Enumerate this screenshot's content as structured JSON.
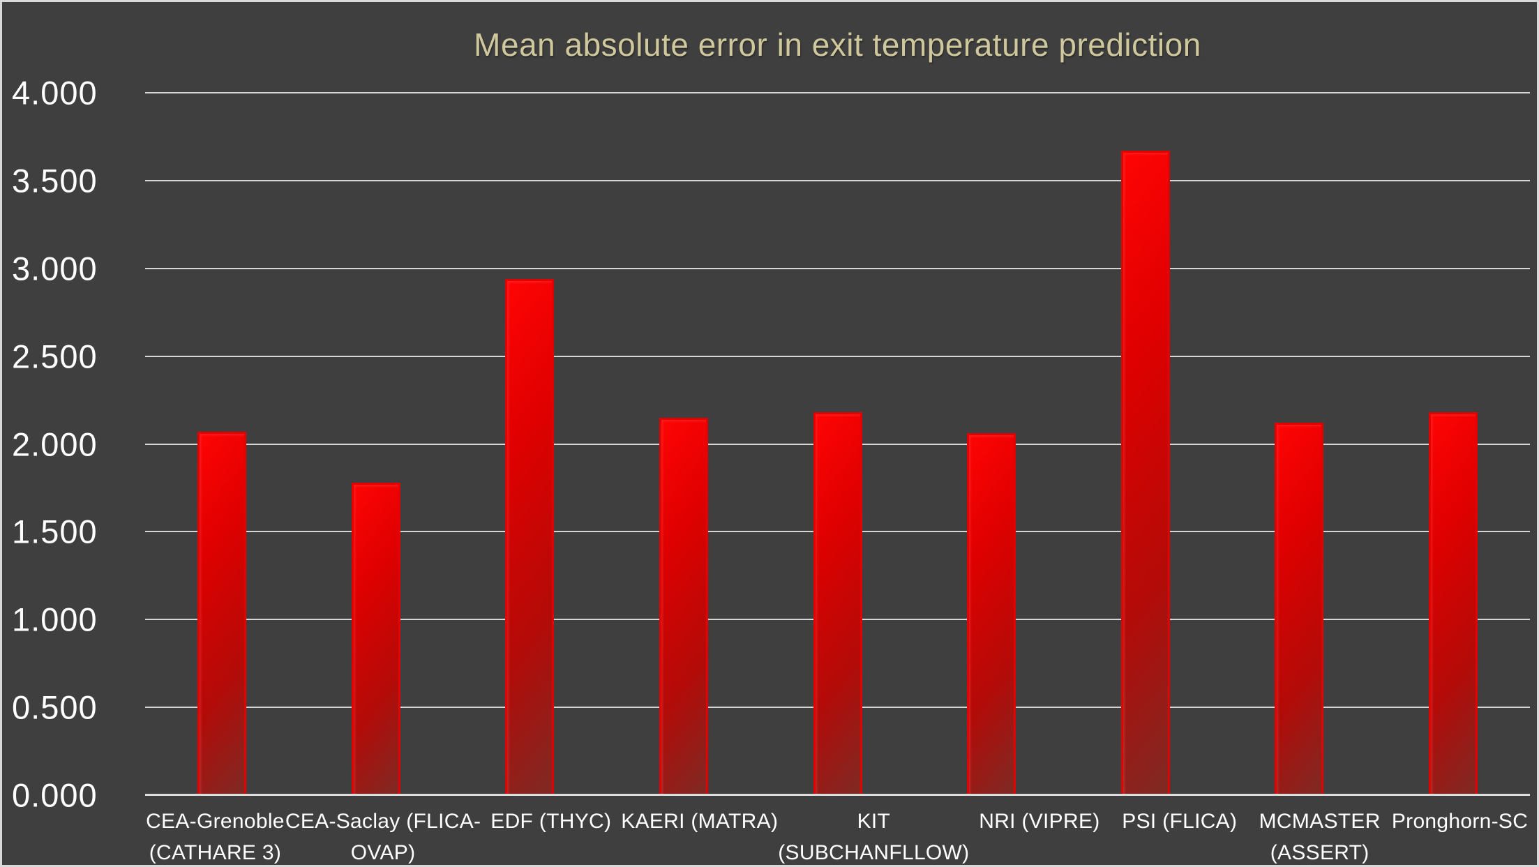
{
  "window": {
    "background_color": "#3f3f3f",
    "frame_border_color": "#d9d9d9"
  },
  "chart_data": {
    "type": "bar",
    "title": "Mean absolute error in exit temperature prediction",
    "title_color": "#cfc89c",
    "xlabel": "",
    "ylabel": "",
    "categories": [
      "CEA-Grenoble (CATHARE 3)",
      "CEA-Saclay (FLICA-OVAP)",
      "EDF (THYC)",
      "KAERI (MATRA)",
      "KIT (SUBCHANFLLOW)",
      "NRI (VIPRE)",
      "PSI (FLICA)",
      "MCMASTER (ASSERT)",
      "Pronghorn-SC"
    ],
    "category_lines": [
      [
        "CEA-Grenoble",
        "(CATHARE 3)"
      ],
      [
        "CEA-Saclay (FLICA-",
        "OVAP)"
      ],
      [
        "EDF (THYC)"
      ],
      [
        "KAERI (MATRA)"
      ],
      [
        "KIT",
        "(SUBCHANFLLOW)"
      ],
      [
        "NRI (VIPRE)"
      ],
      [
        "PSI (FLICA)"
      ],
      [
        "MCMASTER",
        "(ASSERT)"
      ],
      [
        "Pronghorn-SC"
      ]
    ],
    "values": [
      2.07,
      1.78,
      2.94,
      2.15,
      2.18,
      2.06,
      3.67,
      2.12,
      2.18
    ],
    "ylim": [
      0,
      4
    ],
    "ytick_step": 0.5,
    "ytick_labels": [
      "0.000",
      "0.500",
      "1.000",
      "1.500",
      "2.000",
      "2.500",
      "3.000",
      "3.500",
      "4.000"
    ],
    "grid": true,
    "legend": false,
    "gridline_color": "#d6d6d6",
    "axis_line_color": "#dcdcdc",
    "tick_label_color": "#ffffff",
    "bar_border_color": "#e30202",
    "bar_gradient": [
      "#ff0404",
      "#e00000",
      "#b30b08",
      "#7e2a24"
    ]
  }
}
